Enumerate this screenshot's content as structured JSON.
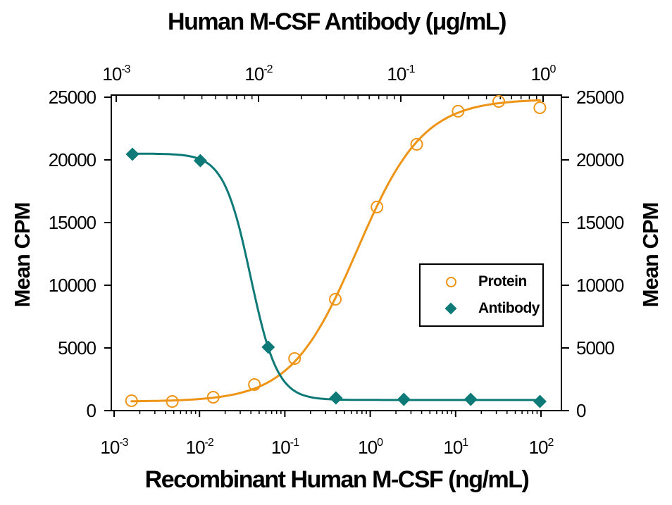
{
  "chart_data": {
    "type": "scatter-line (dose-response / neutralization curves, log x-axes)",
    "top_axis": {
      "title": "Human M-CSF Antibody (μg/mL)",
      "scale": "log10",
      "unit": "μg/mL",
      "tick_base": "10",
      "tick_exponents": [
        -3,
        -2,
        -1,
        0
      ],
      "range_log": [
        -3,
        0
      ]
    },
    "bottom_axis": {
      "title": "Recombinant Human M-CSF (ng/mL)",
      "scale": "log10",
      "unit": "ng/mL",
      "tick_base": "10",
      "tick_exponents": [
        -3,
        -2,
        -1,
        0,
        1,
        2
      ],
      "range_log": [
        -3,
        2
      ]
    },
    "left_axis": {
      "title": "Mean CPM",
      "ticks": [
        0,
        5000,
        10000,
        15000,
        20000,
        25000
      ],
      "range": [
        0,
        25000
      ]
    },
    "right_axis": {
      "title": "Mean CPM",
      "ticks": [
        0,
        5000,
        10000,
        15000,
        20000,
        25000
      ],
      "range": [
        0,
        25000
      ]
    },
    "series": [
      {
        "name": "Protein",
        "axis": "bottom",
        "marker": "open-circle",
        "color": "#EE9416",
        "points": [
          {
            "x": 0.0016,
            "y": 790
          },
          {
            "x": 0.0048,
            "y": 730
          },
          {
            "x": 0.0145,
            "y": 1070
          },
          {
            "x": 0.044,
            "y": 2080
          },
          {
            "x": 0.13,
            "y": 4160
          },
          {
            "x": 0.39,
            "y": 8880
          },
          {
            "x": 1.2,
            "y": 16240
          },
          {
            "x": 3.5,
            "y": 21240
          },
          {
            "x": 10.7,
            "y": 23880
          },
          {
            "x": 32,
            "y": 24660
          },
          {
            "x": 97,
            "y": 24160
          }
        ],
        "fit": {
          "min_plateau": 720,
          "max_plateau": 24850,
          "midpoint": 0.7,
          "hill": 1.12,
          "response": "increasing"
        }
      },
      {
        "name": "Antibody",
        "axis": "top",
        "marker": "filled-diamond",
        "color": "#0E7A78",
        "points": [
          {
            "x": 0.0013,
            "y": 20450
          },
          {
            "x": 0.0039,
            "y": 19940
          },
          {
            "x": 0.0117,
            "y": 5060
          },
          {
            "x": 0.035,
            "y": 1010
          },
          {
            "x": 0.105,
            "y": 900
          },
          {
            "x": 0.31,
            "y": 900
          },
          {
            "x": 0.95,
            "y": 730
          }
        ],
        "fit": {
          "min_plateau": 850,
          "max_plateau": 20500,
          "midpoint": 0.0088,
          "hill": 4.6,
          "response": "decreasing"
        }
      }
    ],
    "legend": {
      "position": "inside-right",
      "entries": [
        {
          "label": "Protein",
          "marker": "open-circle",
          "color": "#EE9416"
        },
        {
          "label": "Antibody",
          "marker": "filled-diamond",
          "color": "#0E7A78"
        }
      ]
    },
    "colors": {
      "protein": "#EE9416",
      "antibody": "#0E7A78",
      "axis": "#000000",
      "background": "#FFFFFF"
    },
    "grid": "off"
  }
}
